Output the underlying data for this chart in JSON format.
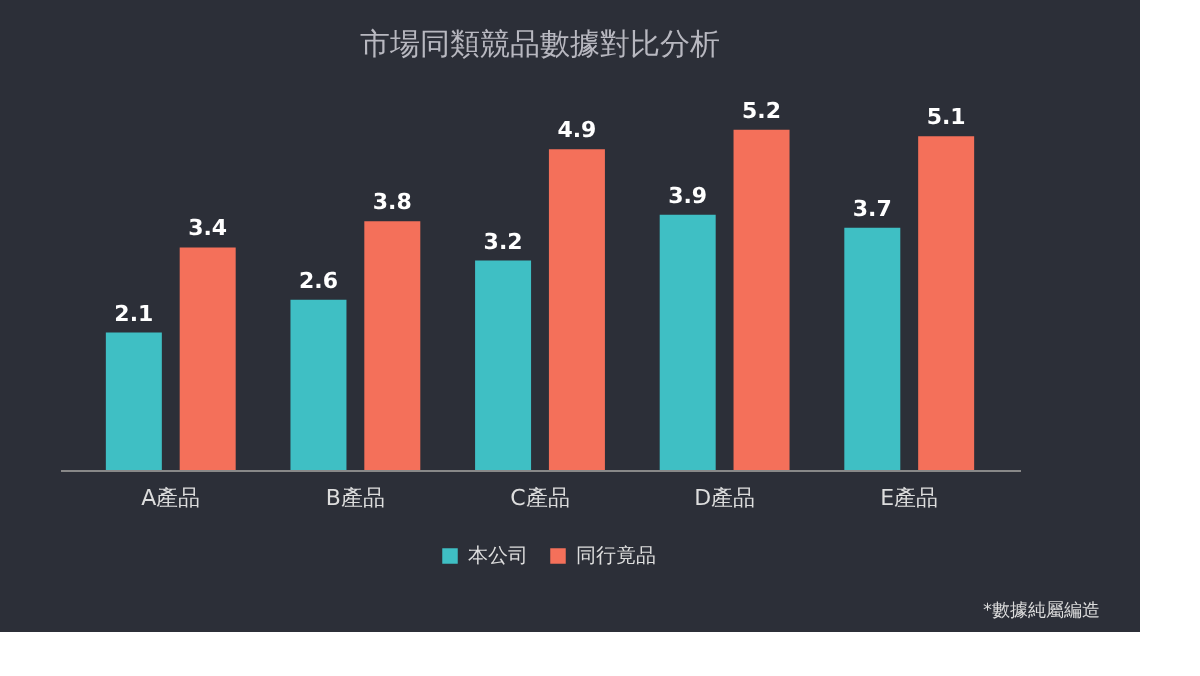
{
  "chart_data": {
    "type": "bar",
    "title": "市場同類競品數據對比分析",
    "categories": [
      "A產品",
      "B產品",
      "C產品",
      "D產品",
      "E產品"
    ],
    "series": [
      {
        "name": "本公司",
        "color": "#3fbfc4",
        "values": [
          2.1,
          2.6,
          3.2,
          3.9,
          3.7
        ]
      },
      {
        "name": "同行竟品",
        "color": "#f4705a",
        "values": [
          3.4,
          3.8,
          4.9,
          5.2,
          5.1
        ]
      }
    ],
    "data_labels": true,
    "grid": false,
    "legend": "bottom",
    "tick_labels": "x",
    "annotations": [
      "*數據純屬編造"
    ]
  }
}
